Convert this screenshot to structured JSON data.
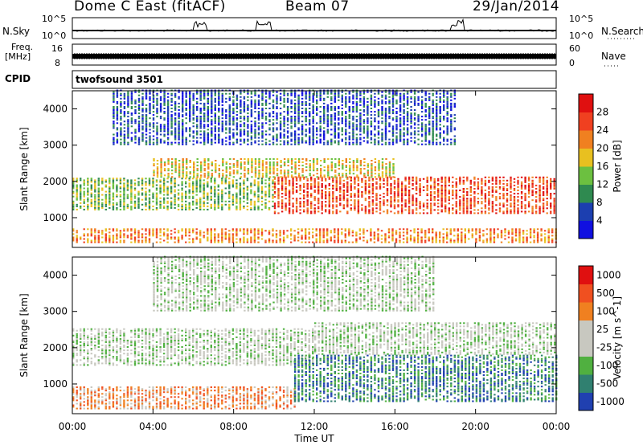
{
  "header": {
    "station": "Dome C East (fitACF)",
    "beam": "Beam 07",
    "date": "29/Jan/2014"
  },
  "colors": {
    "power_scale": [
      "#1010e0",
      "#1c3fb0",
      "#2f8a50",
      "#6cc040",
      "#e8c020",
      "#f08020",
      "#f04020",
      "#e01010"
    ],
    "velocity_scale": [
      "#2040b0",
      "#308070",
      "#50b040",
      "#c8c8c0",
      "#c8c8c0",
      "#f08020",
      "#f05020",
      "#e01010"
    ]
  },
  "strips": {
    "nsky_label": "N.Sky",
    "nsky_ticks": [
      "10^5",
      "10^0"
    ],
    "nsearch_label": "N.Search",
    "nsearch_ticks": [
      "10^5",
      "10^0"
    ],
    "freq_label_1": "Freq.",
    "freq_label_2": "[MHz]",
    "freq_ticks": [
      "16",
      "8"
    ],
    "nave_label": "Nave",
    "nave_ticks": [
      "60",
      "0"
    ],
    "cpid_label": "CPID",
    "cpid_value": "twofsound 3501"
  },
  "chart_data": [
    {
      "type": "heatmap",
      "title": "",
      "quantity": "Power [dB]",
      "xlabel": "Time UT",
      "ylabel": "Slant Range [km]",
      "x_ticks": [
        "00:00",
        "04:00",
        "08:00",
        "12:00",
        "16:00",
        "20:00",
        "00:00"
      ],
      "y_ticks": [
        1000,
        2000,
        3000,
        4000
      ],
      "ylim": [
        180,
        4500
      ],
      "colorbar_label": "Power [dB]",
      "colorbar_ticks": [
        4,
        8,
        12,
        16,
        20,
        24,
        28
      ],
      "bands": [
        {
          "t0": 0,
          "t1": 24,
          "r0": 300,
          "r1": 700,
          "level": 5
        },
        {
          "t0": 0,
          "t1": 10,
          "r0": 1200,
          "r1": 2100,
          "level": 3
        },
        {
          "t0": 10,
          "t1": 24,
          "r0": 1100,
          "r1": 2100,
          "level": 6
        },
        {
          "t0": 4,
          "t1": 16,
          "r0": 2100,
          "r1": 2600,
          "level": 4
        },
        {
          "t0": 2,
          "t1": 19,
          "r0": 3000,
          "r1": 4500,
          "level": 1
        }
      ]
    },
    {
      "type": "heatmap",
      "title": "",
      "quantity": "Velocity [m s^-1]",
      "xlabel": "Time UT",
      "ylabel": "Slant Range [km]",
      "x_ticks": [
        "00:00",
        "04:00",
        "08:00",
        "12:00",
        "16:00",
        "20:00",
        "00:00"
      ],
      "y_ticks": [
        1000,
        2000,
        3000,
        4000
      ],
      "ylim": [
        180,
        4500
      ],
      "colorbar_label": "Velocity [m s^-1]",
      "colorbar_ticks": [
        1000,
        500,
        100,
        25,
        -25,
        -100,
        -500,
        -1000
      ],
      "bands": [
        {
          "t0": 0,
          "t1": 11,
          "r0": 300,
          "r1": 900,
          "level": 5
        },
        {
          "t0": 0,
          "t1": 12,
          "r0": 1500,
          "r1": 2500,
          "level": 3
        },
        {
          "t0": 11,
          "t1": 24,
          "r0": 500,
          "r1": 1800,
          "level": 1
        },
        {
          "t0": 12,
          "t1": 24,
          "r0": 1800,
          "r1": 2700,
          "level": 3
        },
        {
          "t0": 4,
          "t1": 18,
          "r0": 3000,
          "r1": 4500,
          "level": 3
        }
      ]
    }
  ]
}
